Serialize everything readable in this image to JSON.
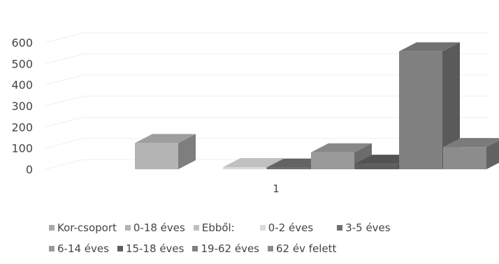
{
  "chart_data": {
    "type": "bar",
    "title": "",
    "xlabel": "",
    "ylabel": "",
    "categories": [
      "1"
    ],
    "ylim": [
      0,
      600
    ],
    "yticks": [
      0,
      100,
      200,
      300,
      400,
      500,
      600
    ],
    "grid": true,
    "legend_position": "bottom",
    "series": [
      {
        "name": "Kor-csoport",
        "values": [
          0
        ],
        "color": "#a8a8a8"
      },
      {
        "name": "0-18 éves",
        "values": [
          124
        ],
        "color": "#b4b4b4"
      },
      {
        "name": "Ebből:",
        "values": [
          0
        ],
        "color": "#bfbfbf"
      },
      {
        "name": "0-2 éves",
        "values": [
          10
        ],
        "color": "#dadada"
      },
      {
        "name": "3-5 éves",
        "values": [
          8
        ],
        "color": "#707070"
      },
      {
        "name": "6-14 éves",
        "values": [
          80
        ],
        "color": "#9a9a9a"
      },
      {
        "name": "15-18 éves",
        "values": [
          26
        ],
        "color": "#5e5e5e"
      },
      {
        "name": "19-62 éves",
        "values": [
          558
        ],
        "color": "#808080"
      },
      {
        "name": "62 év felett",
        "values": [
          105
        ],
        "color": "#8c8c8c"
      }
    ]
  }
}
